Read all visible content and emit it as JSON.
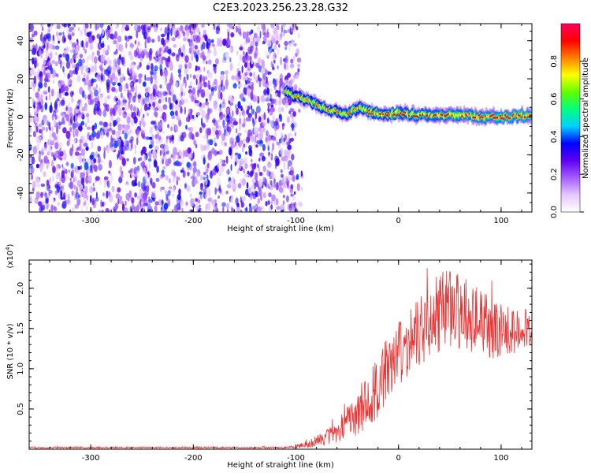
{
  "figure": {
    "title": "C2E3.2023.256.23.28.G32"
  },
  "chart_data": [
    {
      "type": "heatmap",
      "xlabel": "Height of straight line (km)",
      "ylabel": "Frequency (Hz)",
      "xlim": [
        -360,
        130
      ],
      "ylim": [
        -50,
        49
      ],
      "xticks": [
        -300,
        -200,
        -100,
        0,
        100
      ],
      "yticks": [
        -40,
        -20,
        0,
        20,
        40
      ],
      "noise_region_x": [
        -360,
        -100
      ],
      "ridge": {
        "x": [
          -110,
          -100,
          -90,
          -80,
          -70,
          -60,
          -50,
          -40,
          -30,
          -20,
          -10,
          0,
          20,
          40,
          60,
          80,
          100,
          130
        ],
        "y": [
          13,
          11,
          9,
          7,
          4,
          3,
          1,
          5,
          3,
          2,
          1,
          2,
          1,
          1,
          1,
          0,
          0,
          1
        ]
      },
      "colorbar": {
        "label": "Normalized spectral amplitude",
        "range": [
          0,
          1
        ],
        "ticks": [
          0.0,
          0.2,
          0.4,
          0.6,
          0.8
        ],
        "colormap": [
          "#ffffff",
          "#e6c8ff",
          "#a45cff",
          "#6000f0",
          "#0000ff",
          "#00d0ff",
          "#00ff80",
          "#60ff00",
          "#ffff00",
          "#ff8000",
          "#ff0000",
          "#ff0060"
        ]
      }
    },
    {
      "type": "line",
      "xlabel": "Height of straight line (km)",
      "ylabel": "SNR (10 * v/v)",
      "scale_note": "(x10",
      "scale_exp": "4",
      "scale_close": ")",
      "xlim": [
        -360,
        130
      ],
      "ylim": [
        0,
        2.35
      ],
      "xticks": [
        -300,
        -200,
        -100,
        0,
        100
      ],
      "yticks": [
        0.5,
        1.0,
        1.5,
        2.0
      ],
      "ytick_labels": [
        "0.5",
        "1.0",
        "1.5",
        "2.0"
      ],
      "series": [
        {
          "color": "#ee3333",
          "x": [
            -360,
            -300,
            -200,
            -110,
            -100,
            -90,
            -80,
            -70,
            -60,
            -50,
            -40,
            -30,
            -20,
            -10,
            0,
            10,
            20,
            30,
            40,
            50,
            60,
            70,
            80,
            90,
            100,
            110,
            120,
            130
          ],
          "y": [
            0.02,
            0.02,
            0.02,
            0.02,
            0.03,
            0.06,
            0.1,
            0.15,
            0.22,
            0.32,
            0.42,
            0.6,
            0.8,
            1.0,
            1.15,
            1.3,
            1.45,
            1.6,
            1.7,
            1.75,
            1.7,
            1.65,
            1.6,
            1.5,
            1.45,
            1.45,
            1.5,
            1.5
          ],
          "spread": [
            0.01,
            0.01,
            0.01,
            0.01,
            0.02,
            0.04,
            0.07,
            0.1,
            0.15,
            0.2,
            0.25,
            0.35,
            0.4,
            0.45,
            0.45,
            0.45,
            0.45,
            0.45,
            0.5,
            0.5,
            0.5,
            0.45,
            0.45,
            0.4,
            0.35,
            0.3,
            0.25,
            0.25
          ]
        }
      ]
    }
  ]
}
